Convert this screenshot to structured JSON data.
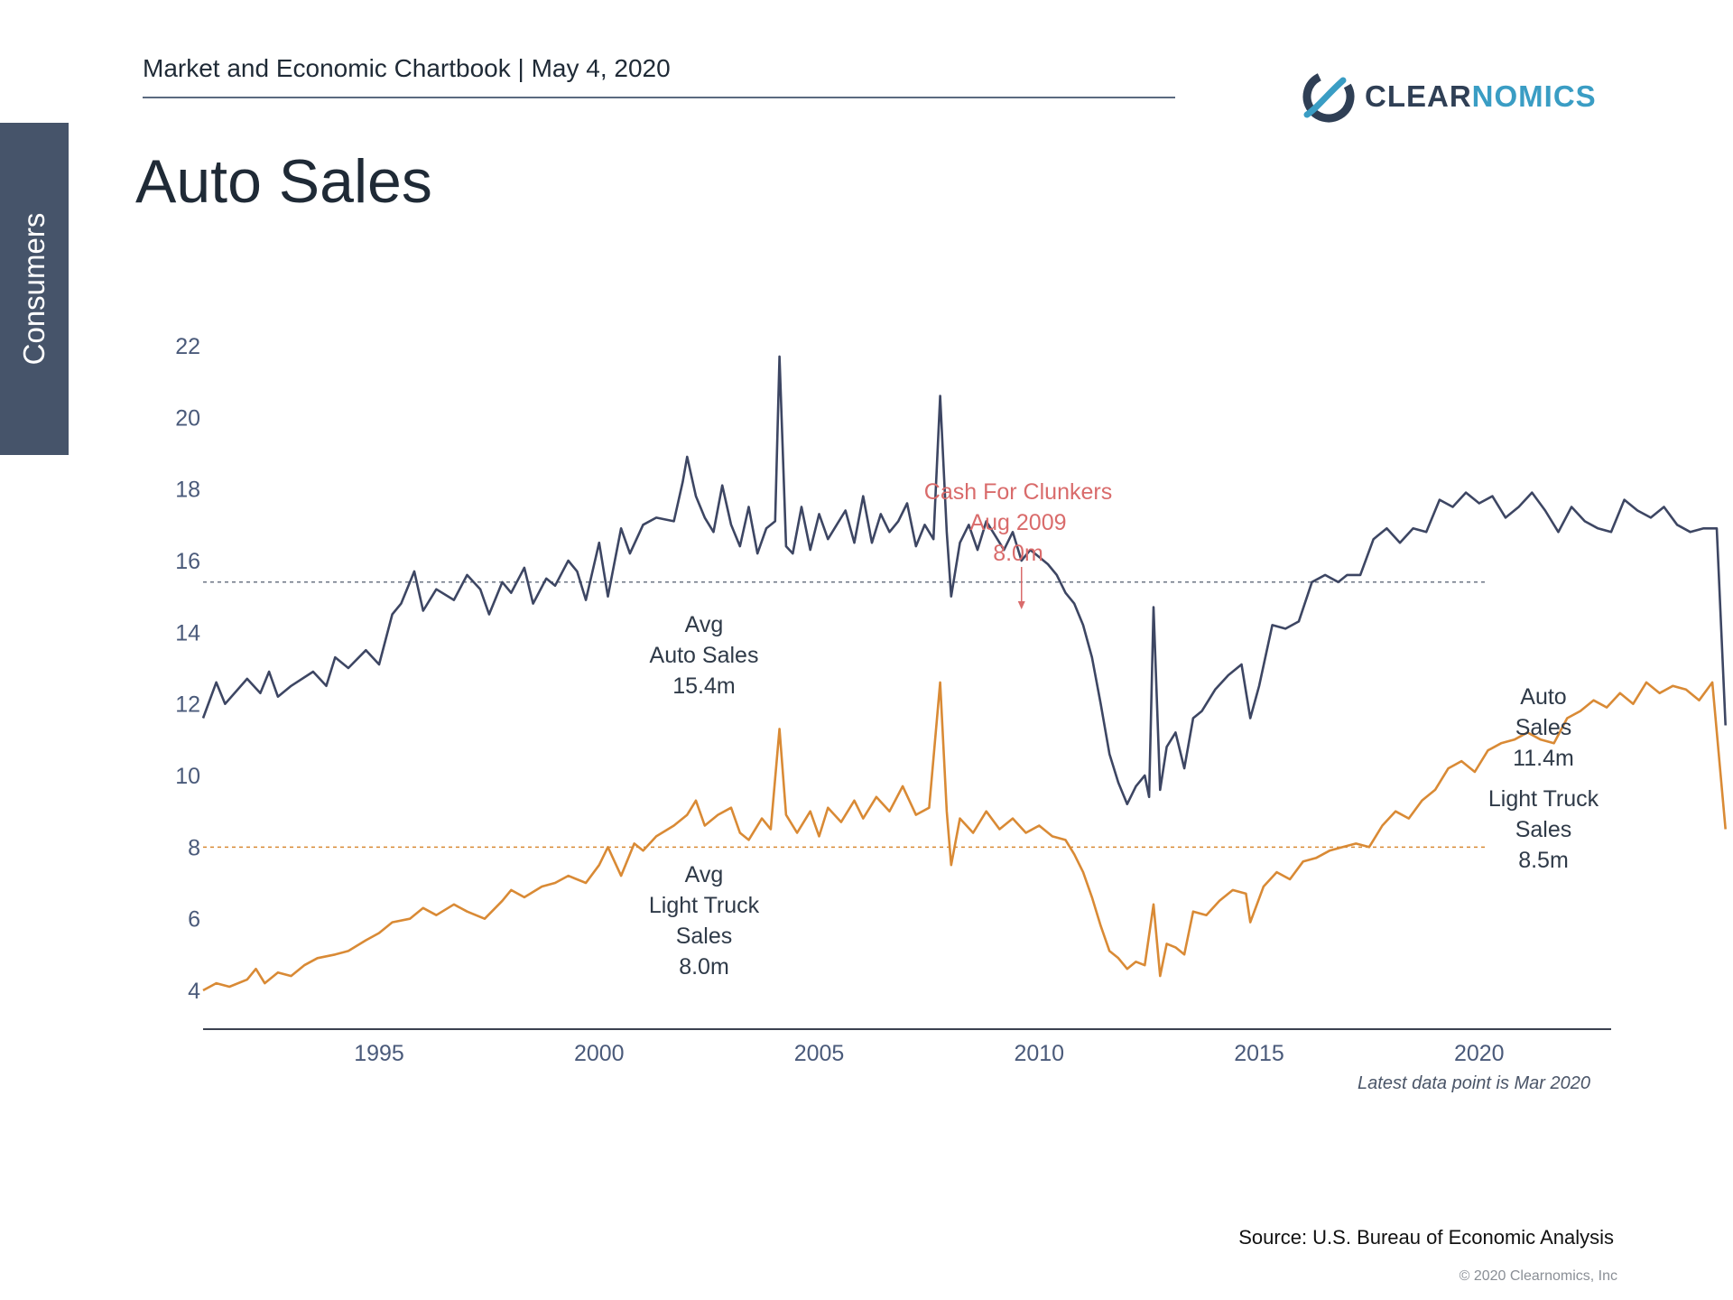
{
  "header": {
    "text": "Market and Economic Chartbook | May 4, 2020",
    "logo_part1": "CLEAR",
    "logo_part2": "NOMICS"
  },
  "sidebar_tab": "Consumers",
  "page_title": "Auto Sales",
  "footer": {
    "source": "Source: U.S. Bureau of Economic Analysis",
    "copyright": "© 2020 Clearnomics, Inc"
  },
  "colors": {
    "auto": "#3d4663",
    "truck": "#d98a35",
    "annotation": "#d96b6b",
    "axis_text": "#4a5a7a"
  },
  "chart_data": {
    "type": "line",
    "title": "Auto Sales",
    "x_axis": {
      "range": [
        1991.0,
        2023.0
      ],
      "ticks": [
        1995,
        2000,
        2005,
        2010,
        2015,
        2020
      ]
    },
    "y_axis": {
      "range": [
        3,
        23
      ],
      "ticks": [
        4,
        6,
        8,
        10,
        12,
        14,
        16,
        18,
        20,
        22
      ]
    },
    "grid": false,
    "note": "Latest data point is Mar 2020",
    "reference_lines": [
      {
        "series": "Auto Sales",
        "value": 15.4,
        "label": [
          "Avg",
          "Auto Sales",
          "15.4m"
        ]
      },
      {
        "series": "Light Truck Sales",
        "value": 8.0,
        "label": [
          "Avg",
          "Light Truck",
          "Sales",
          "8.0m"
        ]
      }
    ],
    "annotation": {
      "label": [
        "Cash For Clunkers",
        "Aug 2009",
        "8.0m"
      ],
      "x": 2009.6
    },
    "end_labels": [
      {
        "series": "Auto Sales",
        "label": [
          "Auto",
          "Sales",
          "11.4m"
        ]
      },
      {
        "series": "Light Truck Sales",
        "label": [
          "Light Truck",
          "Sales",
          "8.5m"
        ]
      }
    ],
    "series": [
      {
        "name": "Auto Sales",
        "color": "#3d4663",
        "points": [
          [
            1991.0,
            11.6
          ],
          [
            1991.3,
            12.6
          ],
          [
            1991.5,
            12.0
          ],
          [
            1992.0,
            12.7
          ],
          [
            1992.3,
            12.3
          ],
          [
            1992.5,
            12.9
          ],
          [
            1992.7,
            12.2
          ],
          [
            1993.0,
            12.5
          ],
          [
            1993.5,
            12.9
          ],
          [
            1993.8,
            12.5
          ],
          [
            1994.0,
            13.3
          ],
          [
            1994.3,
            13.0
          ],
          [
            1994.7,
            13.5
          ],
          [
            1995.0,
            13.1
          ],
          [
            1995.3,
            14.5
          ],
          [
            1995.5,
            14.8
          ],
          [
            1995.8,
            15.7
          ],
          [
            1996.0,
            14.6
          ],
          [
            1996.3,
            15.2
          ],
          [
            1996.7,
            14.9
          ],
          [
            1997.0,
            15.6
          ],
          [
            1997.3,
            15.2
          ],
          [
            1997.5,
            14.5
          ],
          [
            1997.8,
            15.4
          ],
          [
            1998.0,
            15.1
          ],
          [
            1998.3,
            15.8
          ],
          [
            1998.5,
            14.8
          ],
          [
            1998.8,
            15.5
          ],
          [
            1999.0,
            15.3
          ],
          [
            1999.3,
            16.0
          ],
          [
            1999.5,
            15.7
          ],
          [
            1999.7,
            14.9
          ],
          [
            2000.0,
            16.5
          ],
          [
            2000.2,
            15.0
          ],
          [
            2000.5,
            16.9
          ],
          [
            2000.7,
            16.2
          ],
          [
            2001.0,
            17.0
          ],
          [
            2001.3,
            17.2
          ],
          [
            2001.7,
            17.1
          ],
          [
            2001.9,
            18.2
          ],
          [
            2002.0,
            18.9
          ],
          [
            2002.2,
            17.8
          ],
          [
            2002.4,
            17.2
          ],
          [
            2002.6,
            16.8
          ],
          [
            2002.8,
            18.1
          ],
          [
            2003.0,
            17.0
          ],
          [
            2003.2,
            16.4
          ],
          [
            2003.4,
            17.5
          ],
          [
            2003.6,
            16.2
          ],
          [
            2003.8,
            16.9
          ],
          [
            2004.0,
            17.1
          ],
          [
            2004.1,
            21.7
          ],
          [
            2004.25,
            16.4
          ],
          [
            2004.4,
            16.2
          ],
          [
            2004.6,
            17.5
          ],
          [
            2004.8,
            16.3
          ],
          [
            2005.0,
            17.3
          ],
          [
            2005.2,
            16.6
          ],
          [
            2005.4,
            17.0
          ],
          [
            2005.6,
            17.4
          ],
          [
            2005.8,
            16.5
          ],
          [
            2006.0,
            17.8
          ],
          [
            2006.2,
            16.5
          ],
          [
            2006.4,
            17.3
          ],
          [
            2006.6,
            16.8
          ],
          [
            2006.8,
            17.1
          ],
          [
            2007.0,
            17.6
          ],
          [
            2007.2,
            16.4
          ],
          [
            2007.4,
            17.0
          ],
          [
            2007.6,
            16.6
          ],
          [
            2007.75,
            20.6
          ],
          [
            2007.9,
            16.8
          ],
          [
            2008.0,
            15.0
          ],
          [
            2008.2,
            16.5
          ],
          [
            2008.4,
            17.0
          ],
          [
            2008.6,
            16.3
          ],
          [
            2008.8,
            17.1
          ],
          [
            2009.0,
            16.7
          ],
          [
            2009.2,
            16.3
          ],
          [
            2009.4,
            16.8
          ],
          [
            2009.6,
            16.0
          ],
          [
            2009.8,
            16.3
          ],
          [
            2010.0,
            16.1
          ],
          [
            2010.2,
            15.9
          ],
          [
            2010.4,
            15.6
          ],
          [
            2010.6,
            15.1
          ],
          [
            2010.8,
            14.8
          ],
          [
            2011.0,
            14.2
          ],
          [
            2011.2,
            13.3
          ],
          [
            2011.4,
            12.0
          ],
          [
            2011.6,
            10.6
          ],
          [
            2011.8,
            9.8
          ],
          [
            2012.0,
            9.2
          ],
          [
            2012.2,
            9.7
          ],
          [
            2012.4,
            10.0
          ],
          [
            2012.5,
            9.4
          ],
          [
            2012.6,
            14.7
          ],
          [
            2012.75,
            9.6
          ],
          [
            2012.9,
            10.8
          ],
          [
            2013.1,
            11.2
          ],
          [
            2013.3,
            10.2
          ],
          [
            2013.5,
            11.6
          ],
          [
            2013.7,
            11.8
          ],
          [
            2014.0,
            12.4
          ],
          [
            2014.3,
            12.8
          ],
          [
            2014.6,
            13.1
          ],
          [
            2014.8,
            11.6
          ],
          [
            2015.0,
            12.5
          ],
          [
            2015.3,
            14.2
          ],
          [
            2015.6,
            14.1
          ],
          [
            2015.9,
            14.3
          ],
          [
            2016.2,
            15.4
          ],
          [
            2016.5,
            15.6
          ],
          [
            2016.8,
            15.4
          ],
          [
            2017.0,
            15.6
          ],
          [
            2017.3,
            15.6
          ],
          [
            2017.6,
            16.6
          ],
          [
            2017.9,
            16.9
          ],
          [
            2018.2,
            16.5
          ],
          [
            2018.5,
            16.9
          ],
          [
            2018.8,
            16.8
          ],
          [
            2019.1,
            17.7
          ],
          [
            2019.4,
            17.5
          ],
          [
            2019.7,
            17.9
          ],
          [
            2020.0,
            17.6
          ],
          [
            2020.3,
            17.8
          ],
          [
            2020.6,
            17.2
          ],
          [
            2020.9,
            17.5
          ],
          [
            2021.2,
            17.9
          ],
          [
            2021.5,
            17.4
          ],
          [
            2021.8,
            16.8
          ],
          [
            2022.1,
            17.5
          ],
          [
            2022.4,
            17.1
          ],
          [
            2022.7,
            16.9
          ],
          [
            2023.0,
            16.8
          ],
          [
            2023.3,
            17.7
          ],
          [
            2023.6,
            17.4
          ],
          [
            2023.9,
            17.2
          ],
          [
            2024.2,
            17.5
          ],
          [
            2024.5,
            17.0
          ],
          [
            2024.8,
            16.8
          ],
          [
            2025.1,
            16.9
          ],
          [
            2025.4,
            16.9
          ],
          [
            2025.6,
            11.4
          ]
        ]
      },
      {
        "name": "Light Truck Sales",
        "color": "#d98a35",
        "points": [
          [
            1991.0,
            4.0
          ],
          [
            1991.3,
            4.2
          ],
          [
            1991.6,
            4.1
          ],
          [
            1992.0,
            4.3
          ],
          [
            1992.2,
            4.6
          ],
          [
            1992.4,
            4.2
          ],
          [
            1992.7,
            4.5
          ],
          [
            1993.0,
            4.4
          ],
          [
            1993.3,
            4.7
          ],
          [
            1993.6,
            4.9
          ],
          [
            1994.0,
            5.0
          ],
          [
            1994.3,
            5.1
          ],
          [
            1994.7,
            5.4
          ],
          [
            1995.0,
            5.6
          ],
          [
            1995.3,
            5.9
          ],
          [
            1995.7,
            6.0
          ],
          [
            1996.0,
            6.3
          ],
          [
            1996.3,
            6.1
          ],
          [
            1996.7,
            6.4
          ],
          [
            1997.0,
            6.2
          ],
          [
            1997.4,
            6.0
          ],
          [
            1997.8,
            6.5
          ],
          [
            1998.0,
            6.8
          ],
          [
            1998.3,
            6.6
          ],
          [
            1998.7,
            6.9
          ],
          [
            1999.0,
            7.0
          ],
          [
            1999.3,
            7.2
          ],
          [
            1999.7,
            7.0
          ],
          [
            2000.0,
            7.5
          ],
          [
            2000.2,
            8.0
          ],
          [
            2000.5,
            7.2
          ],
          [
            2000.8,
            8.1
          ],
          [
            2001.0,
            7.9
          ],
          [
            2001.3,
            8.3
          ],
          [
            2001.7,
            8.6
          ],
          [
            2002.0,
            8.9
          ],
          [
            2002.2,
            9.3
          ],
          [
            2002.4,
            8.6
          ],
          [
            2002.7,
            8.9
          ],
          [
            2003.0,
            9.1
          ],
          [
            2003.2,
            8.4
          ],
          [
            2003.4,
            8.2
          ],
          [
            2003.7,
            8.8
          ],
          [
            2003.9,
            8.5
          ],
          [
            2004.1,
            11.3
          ],
          [
            2004.25,
            8.9
          ],
          [
            2004.5,
            8.4
          ],
          [
            2004.8,
            9.0
          ],
          [
            2005.0,
            8.3
          ],
          [
            2005.2,
            9.1
          ],
          [
            2005.5,
            8.7
          ],
          [
            2005.8,
            9.3
          ],
          [
            2006.0,
            8.8
          ],
          [
            2006.3,
            9.4
          ],
          [
            2006.6,
            9.0
          ],
          [
            2006.9,
            9.7
          ],
          [
            2007.2,
            8.9
          ],
          [
            2007.5,
            9.1
          ],
          [
            2007.75,
            12.6
          ],
          [
            2007.9,
            9.0
          ],
          [
            2008.0,
            7.5
          ],
          [
            2008.2,
            8.8
          ],
          [
            2008.5,
            8.4
          ],
          [
            2008.8,
            9.0
          ],
          [
            2009.1,
            8.5
          ],
          [
            2009.4,
            8.8
          ],
          [
            2009.7,
            8.4
          ],
          [
            2010.0,
            8.6
          ],
          [
            2010.3,
            8.3
          ],
          [
            2010.6,
            8.2
          ],
          [
            2010.8,
            7.8
          ],
          [
            2011.0,
            7.3
          ],
          [
            2011.2,
            6.6
          ],
          [
            2011.4,
            5.8
          ],
          [
            2011.6,
            5.1
          ],
          [
            2011.8,
            4.9
          ],
          [
            2012.0,
            4.6
          ],
          [
            2012.2,
            4.8
          ],
          [
            2012.4,
            4.7
          ],
          [
            2012.6,
            6.4
          ],
          [
            2012.75,
            4.4
          ],
          [
            2012.9,
            5.3
          ],
          [
            2013.1,
            5.2
          ],
          [
            2013.3,
            5.0
          ],
          [
            2013.5,
            6.2
          ],
          [
            2013.8,
            6.1
          ],
          [
            2014.1,
            6.5
          ],
          [
            2014.4,
            6.8
          ],
          [
            2014.7,
            6.7
          ],
          [
            2014.8,
            5.9
          ],
          [
            2015.1,
            6.9
          ],
          [
            2015.4,
            7.3
          ],
          [
            2015.7,
            7.1
          ],
          [
            2016.0,
            7.6
          ],
          [
            2016.3,
            7.7
          ],
          [
            2016.6,
            7.9
          ],
          [
            2016.9,
            8.0
          ],
          [
            2017.2,
            8.1
          ],
          [
            2017.5,
            8.0
          ],
          [
            2017.8,
            8.6
          ],
          [
            2018.1,
            9.0
          ],
          [
            2018.4,
            8.8
          ],
          [
            2018.7,
            9.3
          ],
          [
            2019.0,
            9.6
          ],
          [
            2019.3,
            10.2
          ],
          [
            2019.6,
            10.4
          ],
          [
            2019.9,
            10.1
          ],
          [
            2020.2,
            10.7
          ],
          [
            2020.5,
            10.9
          ],
          [
            2020.8,
            11.0
          ],
          [
            2021.1,
            11.2
          ],
          [
            2021.4,
            11.0
          ],
          [
            2021.7,
            10.9
          ],
          [
            2022.0,
            11.6
          ],
          [
            2022.3,
            11.8
          ],
          [
            2022.6,
            12.1
          ],
          [
            2022.9,
            11.9
          ],
          [
            2023.2,
            12.3
          ],
          [
            2023.5,
            12.0
          ],
          [
            2023.8,
            12.6
          ],
          [
            2024.1,
            12.3
          ],
          [
            2024.4,
            12.5
          ],
          [
            2024.7,
            12.4
          ],
          [
            2025.0,
            12.1
          ],
          [
            2025.3,
            12.6
          ],
          [
            2025.6,
            8.5
          ]
        ]
      }
    ]
  }
}
